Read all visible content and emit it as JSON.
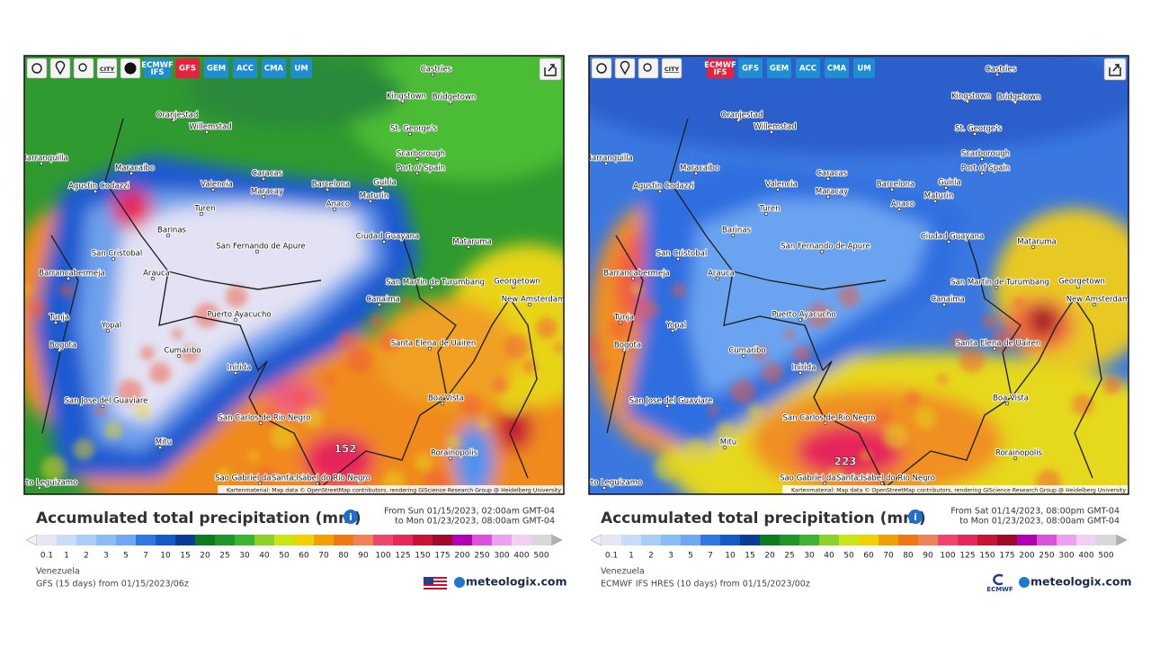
{
  "map_labels": [
    "Castries",
    "Kingstown",
    "Bridgetown",
    "Oranjestad",
    "Willemstad",
    "St. George's",
    "Scarborough",
    "Barranquilla",
    "Maracaibo",
    "Caracas",
    "Port of Spain",
    "Agustin Codazzi",
    "Valencia",
    "Maracay",
    "Barcelona",
    "Guiria",
    "Maturin",
    "Anaco",
    "Turen",
    "Barinas",
    "San Fernando de Apure",
    "Ciudad Guayana",
    "Matarumа",
    "San Cristobal",
    "Barrancabermeja",
    "Arauca",
    "San Martin de Turumbang",
    "Georgetown",
    "New Amsterdam",
    "Canaima",
    "Tunja",
    "Yopal",
    "Puerto Ayacucho",
    "Bogota",
    "Cumaribo",
    "Santa Elena de Uairen",
    "Inirida",
    "Boa Vista",
    "San Jose del Guaviare",
    "San Carlos de Rio Negro",
    "Rorainopolis",
    "Mitu",
    "Sao Gabriel da Cachoeira",
    "Santa Isabel do Rio Negro",
    "Puerto Leguizamo"
  ],
  "panels": [
    {
      "city_button": "CITY",
      "models": [
        "ECMWF IFS",
        "GFS",
        "GEM",
        "ACC",
        "CMA",
        "UM"
      ],
      "active_model": "GFS",
      "max_label": "152",
      "attribution": "Kartenmaterial: Map data © OpenStreetMap contributors, rendering GIScience Research Group @ Heidelberg University",
      "title": "Accumulated total precipitation (mm)",
      "period": [
        "From Sun 01/15/2023, 02:00am GMT-04",
        "to Mon 01/23/2023, 08:00am GMT-04"
      ],
      "legend": [
        0.1,
        1,
        2,
        3,
        5,
        7,
        10,
        15,
        20,
        25,
        30,
        40,
        50,
        60,
        70,
        80,
        90,
        100,
        125,
        150,
        175,
        200,
        250,
        300,
        400,
        500
      ],
      "region": "Venezuela",
      "model_run": "GFS (15 days) from 01/15/2023/06z",
      "brand": "meteologix.com"
    },
    {
      "city_button": "CITY",
      "models": [
        "ECMWF IFS",
        "GFS",
        "GEM",
        "ACC",
        "CMA",
        "UM"
      ],
      "active_model": "ECMWF IFS",
      "max_label": "223",
      "attribution": "Kartenmaterial: Map data © OpenStreetMap contributors, rendering GIScience Research Group @ Heidelberg University",
      "title": "Accumulated total precipitation (mm)",
      "period": [
        "From Sat 01/14/2023, 08:00pm GMT-04",
        "to Mon 01/23/2023, 08:00am GMT-04"
      ],
      "legend": [
        0.1,
        1,
        2,
        3,
        5,
        7,
        10,
        15,
        20,
        25,
        30,
        40,
        50,
        60,
        70,
        80,
        90,
        100,
        125,
        150,
        175,
        200,
        250,
        300,
        400,
        500
      ],
      "region": "Venezuela",
      "model_run": "ECMWF IFS HRES (10 days) from 01/15/2023/00z",
      "brand": "meteologix.com",
      "logo": "ECMWF"
    }
  ]
}
